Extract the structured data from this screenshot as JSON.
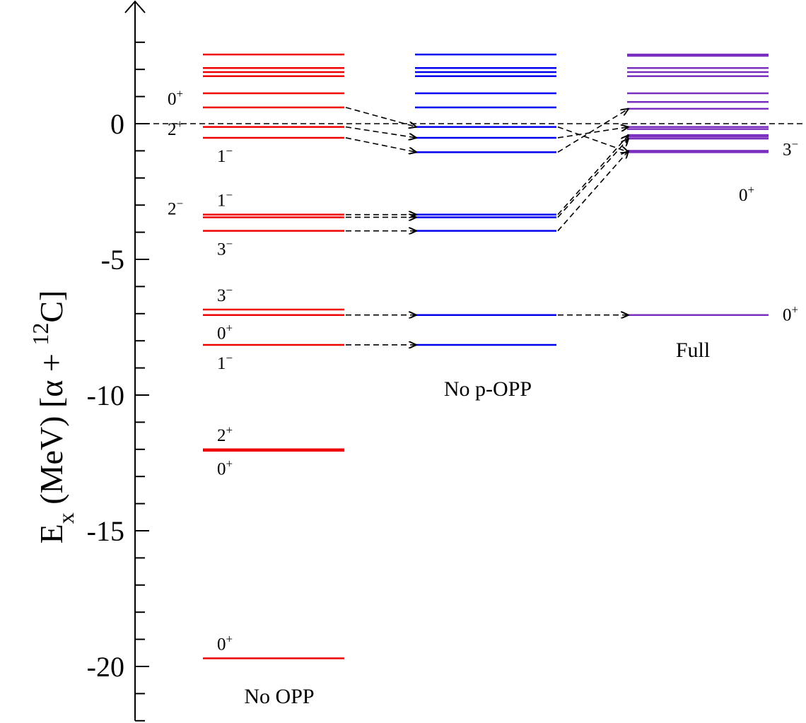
{
  "chart_data": {
    "type": "level-scheme",
    "ylabel": {
      "main": "E",
      "sub": "x",
      "rest": " (MeV)  [α + ",
      "sup": "12",
      "end": "C]"
    },
    "ylim": [
      -22,
      4
    ],
    "yticks": [
      0,
      -5,
      -10,
      -15,
      -20
    ],
    "ytick_labels": [
      "0",
      "-5",
      "-10",
      "-15",
      "-20"
    ],
    "minor_tick_step": 1,
    "threshold_line": {
      "y": 0,
      "style": "dashed"
    },
    "columns": [
      {
        "id": "noopp",
        "name": "No OPP",
        "color": "#ee0000",
        "levels": [
          2.55,
          2.05,
          1.9,
          1.75,
          1.12,
          0.6,
          -0.12,
          -0.52,
          -3.35,
          -3.45,
          -3.95,
          -6.85,
          -7.05,
          -8.15,
          -12.0,
          -12.05,
          -19.7
        ],
        "jpi": [
          {
            "j": "0",
            "p": "+",
            "y": 0.6,
            "side": "left"
          },
          {
            "j": "2",
            "p": "+",
            "y": -0.52,
            "side": "left"
          },
          {
            "j": "1",
            "p": "−",
            "y": -0.52,
            "side": "below"
          },
          {
            "j": "1",
            "p": "−",
            "y": -3.35,
            "side": "above"
          },
          {
            "j": "2",
            "p": "−",
            "y": -3.45,
            "side": "left"
          },
          {
            "j": "3",
            "p": "−",
            "y": -3.95,
            "side": "below"
          },
          {
            "j": "3",
            "p": "−",
            "y": -6.85,
            "side": "above"
          },
          {
            "j": "0",
            "p": "+",
            "y": -7.05,
            "side": "below"
          },
          {
            "j": "1",
            "p": "−",
            "y": -8.15,
            "side": "below"
          },
          {
            "j": "2",
            "p": "+",
            "y": -12.0,
            "side": "above"
          },
          {
            "j": "0",
            "p": "+",
            "y": -12.05,
            "side": "below"
          },
          {
            "j": "0",
            "p": "+",
            "y": -19.7,
            "side": "above"
          }
        ]
      },
      {
        "id": "nopopp",
        "name": "No p-OPP",
        "color": "#0000ee",
        "levels": [
          2.55,
          2.05,
          1.9,
          1.75,
          1.12,
          0.6,
          -0.12,
          -0.52,
          -1.05,
          -3.35,
          -3.45,
          -3.95,
          -7.05,
          -8.15
        ],
        "jpi": []
      },
      {
        "id": "full",
        "name": "Full",
        "color": "#7b2fbe",
        "levels": [
          2.55,
          2.5,
          2.05,
          1.9,
          1.75,
          1.12,
          0.8,
          0.55,
          -0.12,
          -0.2,
          -0.42,
          -0.48,
          -0.55,
          -1.0,
          -1.05,
          -7.05
        ],
        "jpi": [
          {
            "j": "3",
            "p": "−",
            "y": -0.95,
            "side": "right"
          },
          {
            "j": "0",
            "p": "+",
            "y": -1.95,
            "side": "below-right"
          },
          {
            "j": "0",
            "p": "+",
            "y": -7.05,
            "side": "right"
          }
        ]
      }
    ],
    "transitions": [
      {
        "from": "noopp",
        "y1": 0.6,
        "to": "nopopp",
        "y2": -0.12
      },
      {
        "from": "noopp",
        "y1": -0.12,
        "to": "nopopp",
        "y2": -0.52
      },
      {
        "from": "noopp",
        "y1": -0.52,
        "to": "nopopp",
        "y2": -1.05
      },
      {
        "from": "noopp",
        "y1": -3.35,
        "to": "nopopp",
        "y2": -3.35
      },
      {
        "from": "noopp",
        "y1": -3.45,
        "to": "nopopp",
        "y2": -3.45
      },
      {
        "from": "noopp",
        "y1": -3.95,
        "to": "nopopp",
        "y2": -3.95
      },
      {
        "from": "noopp",
        "y1": -7.05,
        "to": "nopopp",
        "y2": -7.05
      },
      {
        "from": "noopp",
        "y1": -8.15,
        "to": "nopopp",
        "y2": -8.15
      },
      {
        "from": "nopopp",
        "y1": -0.12,
        "to": "full",
        "y2": -1.05
      },
      {
        "from": "nopopp",
        "y1": -0.52,
        "to": "full",
        "y2": -0.12
      },
      {
        "from": "nopopp",
        "y1": -1.05,
        "to": "full",
        "y2": 0.55
      },
      {
        "from": "nopopp",
        "y1": -3.35,
        "to": "full",
        "y2": -0.42
      },
      {
        "from": "nopopp",
        "y1": -3.45,
        "to": "full",
        "y2": -0.55
      },
      {
        "from": "nopopp",
        "y1": -3.95,
        "to": "full",
        "y2": -1.0
      },
      {
        "from": "nopopp",
        "y1": -7.05,
        "to": "full",
        "y2": -7.05
      }
    ]
  }
}
